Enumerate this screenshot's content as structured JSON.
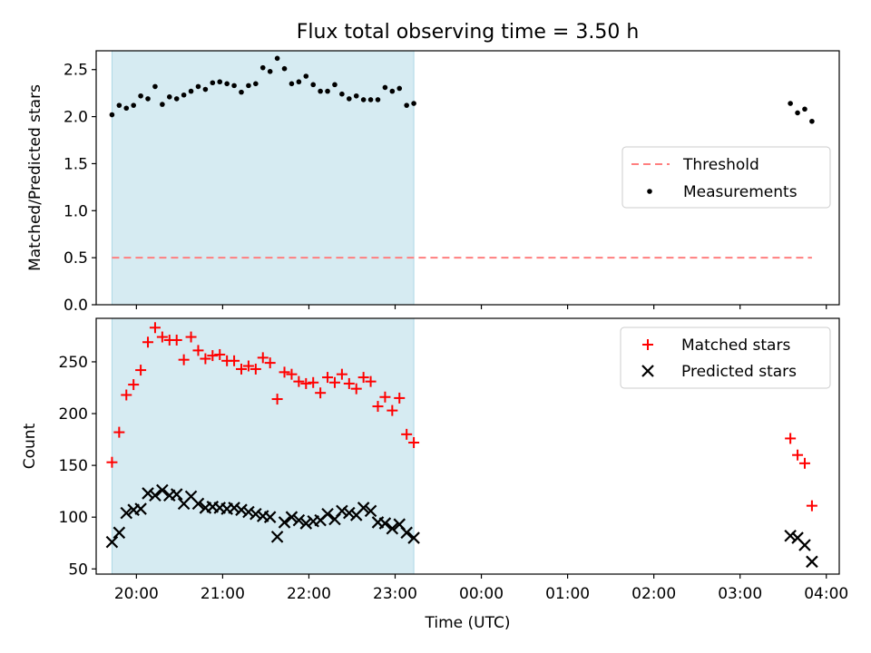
{
  "chart_data": [
    {
      "type": "scatter",
      "title": "Flux total observing time = 3.50 h",
      "xlabel": "",
      "ylabel": "Matched/Predicted stars",
      "ylim": [
        0,
        2.7
      ],
      "yticks": [
        "0.0",
        "0.5",
        "1.0",
        "1.5",
        "2.0",
        "2.5"
      ],
      "xlim": [
        "19:32",
        "04:09"
      ],
      "shaded_interval": [
        "19:43",
        "23:13"
      ],
      "legend_position": "center-right",
      "grid": false,
      "threshold": {
        "name": "Threshold",
        "value": 0.5,
        "x_range": [
          "19:43",
          "03:50"
        ],
        "color": "#ff7f7f",
        "style": "dashed"
      },
      "series": [
        {
          "name": "Measurements",
          "color": "#000000",
          "marker": "dot",
          "x": [
            "19:43",
            "19:48",
            "19:53",
            "19:58",
            "20:03",
            "20:08",
            "20:13",
            "20:18",
            "20:23",
            "20:28",
            "20:33",
            "20:38",
            "20:43",
            "20:48",
            "20:53",
            "20:58",
            "21:03",
            "21:08",
            "21:13",
            "21:18",
            "21:23",
            "21:28",
            "21:33",
            "21:38",
            "21:43",
            "21:48",
            "21:53",
            "21:58",
            "22:03",
            "22:08",
            "22:13",
            "22:18",
            "22:23",
            "22:28",
            "22:33",
            "22:38",
            "22:43",
            "22:48",
            "22:53",
            "22:58",
            "23:03",
            "23:08",
            "23:13",
            "03:35",
            "03:40",
            "03:45",
            "03:50"
          ],
          "y": [
            2.02,
            2.12,
            2.09,
            2.12,
            2.22,
            2.19,
            2.32,
            2.13,
            2.21,
            2.19,
            2.23,
            2.27,
            2.32,
            2.29,
            2.36,
            2.37,
            2.35,
            2.33,
            2.26,
            2.33,
            2.35,
            2.52,
            2.48,
            2.62,
            2.51,
            2.35,
            2.37,
            2.43,
            2.34,
            2.27,
            2.27,
            2.34,
            2.24,
            2.19,
            2.22,
            2.18,
            2.18,
            2.18,
            2.31,
            2.27,
            2.3,
            2.12,
            2.14,
            2.14,
            2.04,
            2.08,
            1.95
          ]
        }
      ]
    },
    {
      "type": "scatter",
      "title": "",
      "xlabel": "Time (UTC)",
      "ylabel": "Count",
      "ylim": [
        45,
        292
      ],
      "yticks": [
        "50",
        "100",
        "150",
        "200",
        "250"
      ],
      "xlim": [
        "19:32",
        "04:09"
      ],
      "xticks": [
        "20:00",
        "21:00",
        "22:00",
        "23:00",
        "00:00",
        "01:00",
        "02:00",
        "03:00",
        "04:00"
      ],
      "shaded_interval": [
        "19:43",
        "23:13"
      ],
      "legend_position": "top-right",
      "grid": false,
      "series": [
        {
          "name": "Matched stars",
          "color": "#ff0000",
          "marker": "plus",
          "x": [
            "19:43",
            "19:48",
            "19:53",
            "19:58",
            "20:03",
            "20:08",
            "20:13",
            "20:18",
            "20:23",
            "20:28",
            "20:33",
            "20:38",
            "20:43",
            "20:48",
            "20:53",
            "20:58",
            "21:03",
            "21:08",
            "21:13",
            "21:18",
            "21:23",
            "21:28",
            "21:33",
            "21:38",
            "21:43",
            "21:48",
            "21:53",
            "21:58",
            "22:03",
            "22:08",
            "22:13",
            "22:18",
            "22:23",
            "22:28",
            "22:33",
            "22:38",
            "22:43",
            "22:48",
            "22:53",
            "22:58",
            "23:03",
            "23:08",
            "23:13",
            "03:35",
            "03:40",
            "03:45",
            "03:50"
          ],
          "y": [
            153,
            182,
            218,
            228,
            242,
            269,
            283,
            274,
            271,
            271,
            252,
            274,
            261,
            253,
            256,
            257,
            251,
            251,
            243,
            246,
            243,
            254,
            249,
            214,
            240,
            238,
            231,
            229,
            230,
            220,
            235,
            230,
            238,
            229,
            224,
            235,
            231,
            207,
            216,
            203,
            215,
            180,
            172,
            176,
            160,
            152,
            111
          ]
        },
        {
          "name": "Predicted stars",
          "color": "#000000",
          "marker": "x",
          "x": [
            "19:43",
            "19:48",
            "19:53",
            "19:58",
            "20:03",
            "20:08",
            "20:13",
            "20:18",
            "20:23",
            "20:28",
            "20:33",
            "20:38",
            "20:43",
            "20:48",
            "20:53",
            "20:58",
            "21:03",
            "21:08",
            "21:13",
            "21:18",
            "21:23",
            "21:28",
            "21:33",
            "21:38",
            "21:43",
            "21:48",
            "21:53",
            "21:58",
            "22:03",
            "22:08",
            "22:13",
            "22:18",
            "22:23",
            "22:28",
            "22:33",
            "22:38",
            "22:43",
            "22:48",
            "22:53",
            "22:58",
            "23:03",
            "23:08",
            "23:13",
            "03:35",
            "03:40",
            "03:45",
            "03:50"
          ],
          "y": [
            76,
            85,
            104,
            107,
            108,
            123,
            121,
            126,
            121,
            122,
            113,
            120,
            113,
            109,
            110,
            109,
            108,
            109,
            107,
            105,
            103,
            101,
            100,
            81,
            95,
            100,
            97,
            94,
            96,
            97,
            103,
            98,
            106,
            104,
            102,
            109,
            106,
            95,
            94,
            89,
            93,
            85,
            80,
            82,
            80,
            73,
            57
          ]
        }
      ]
    }
  ]
}
